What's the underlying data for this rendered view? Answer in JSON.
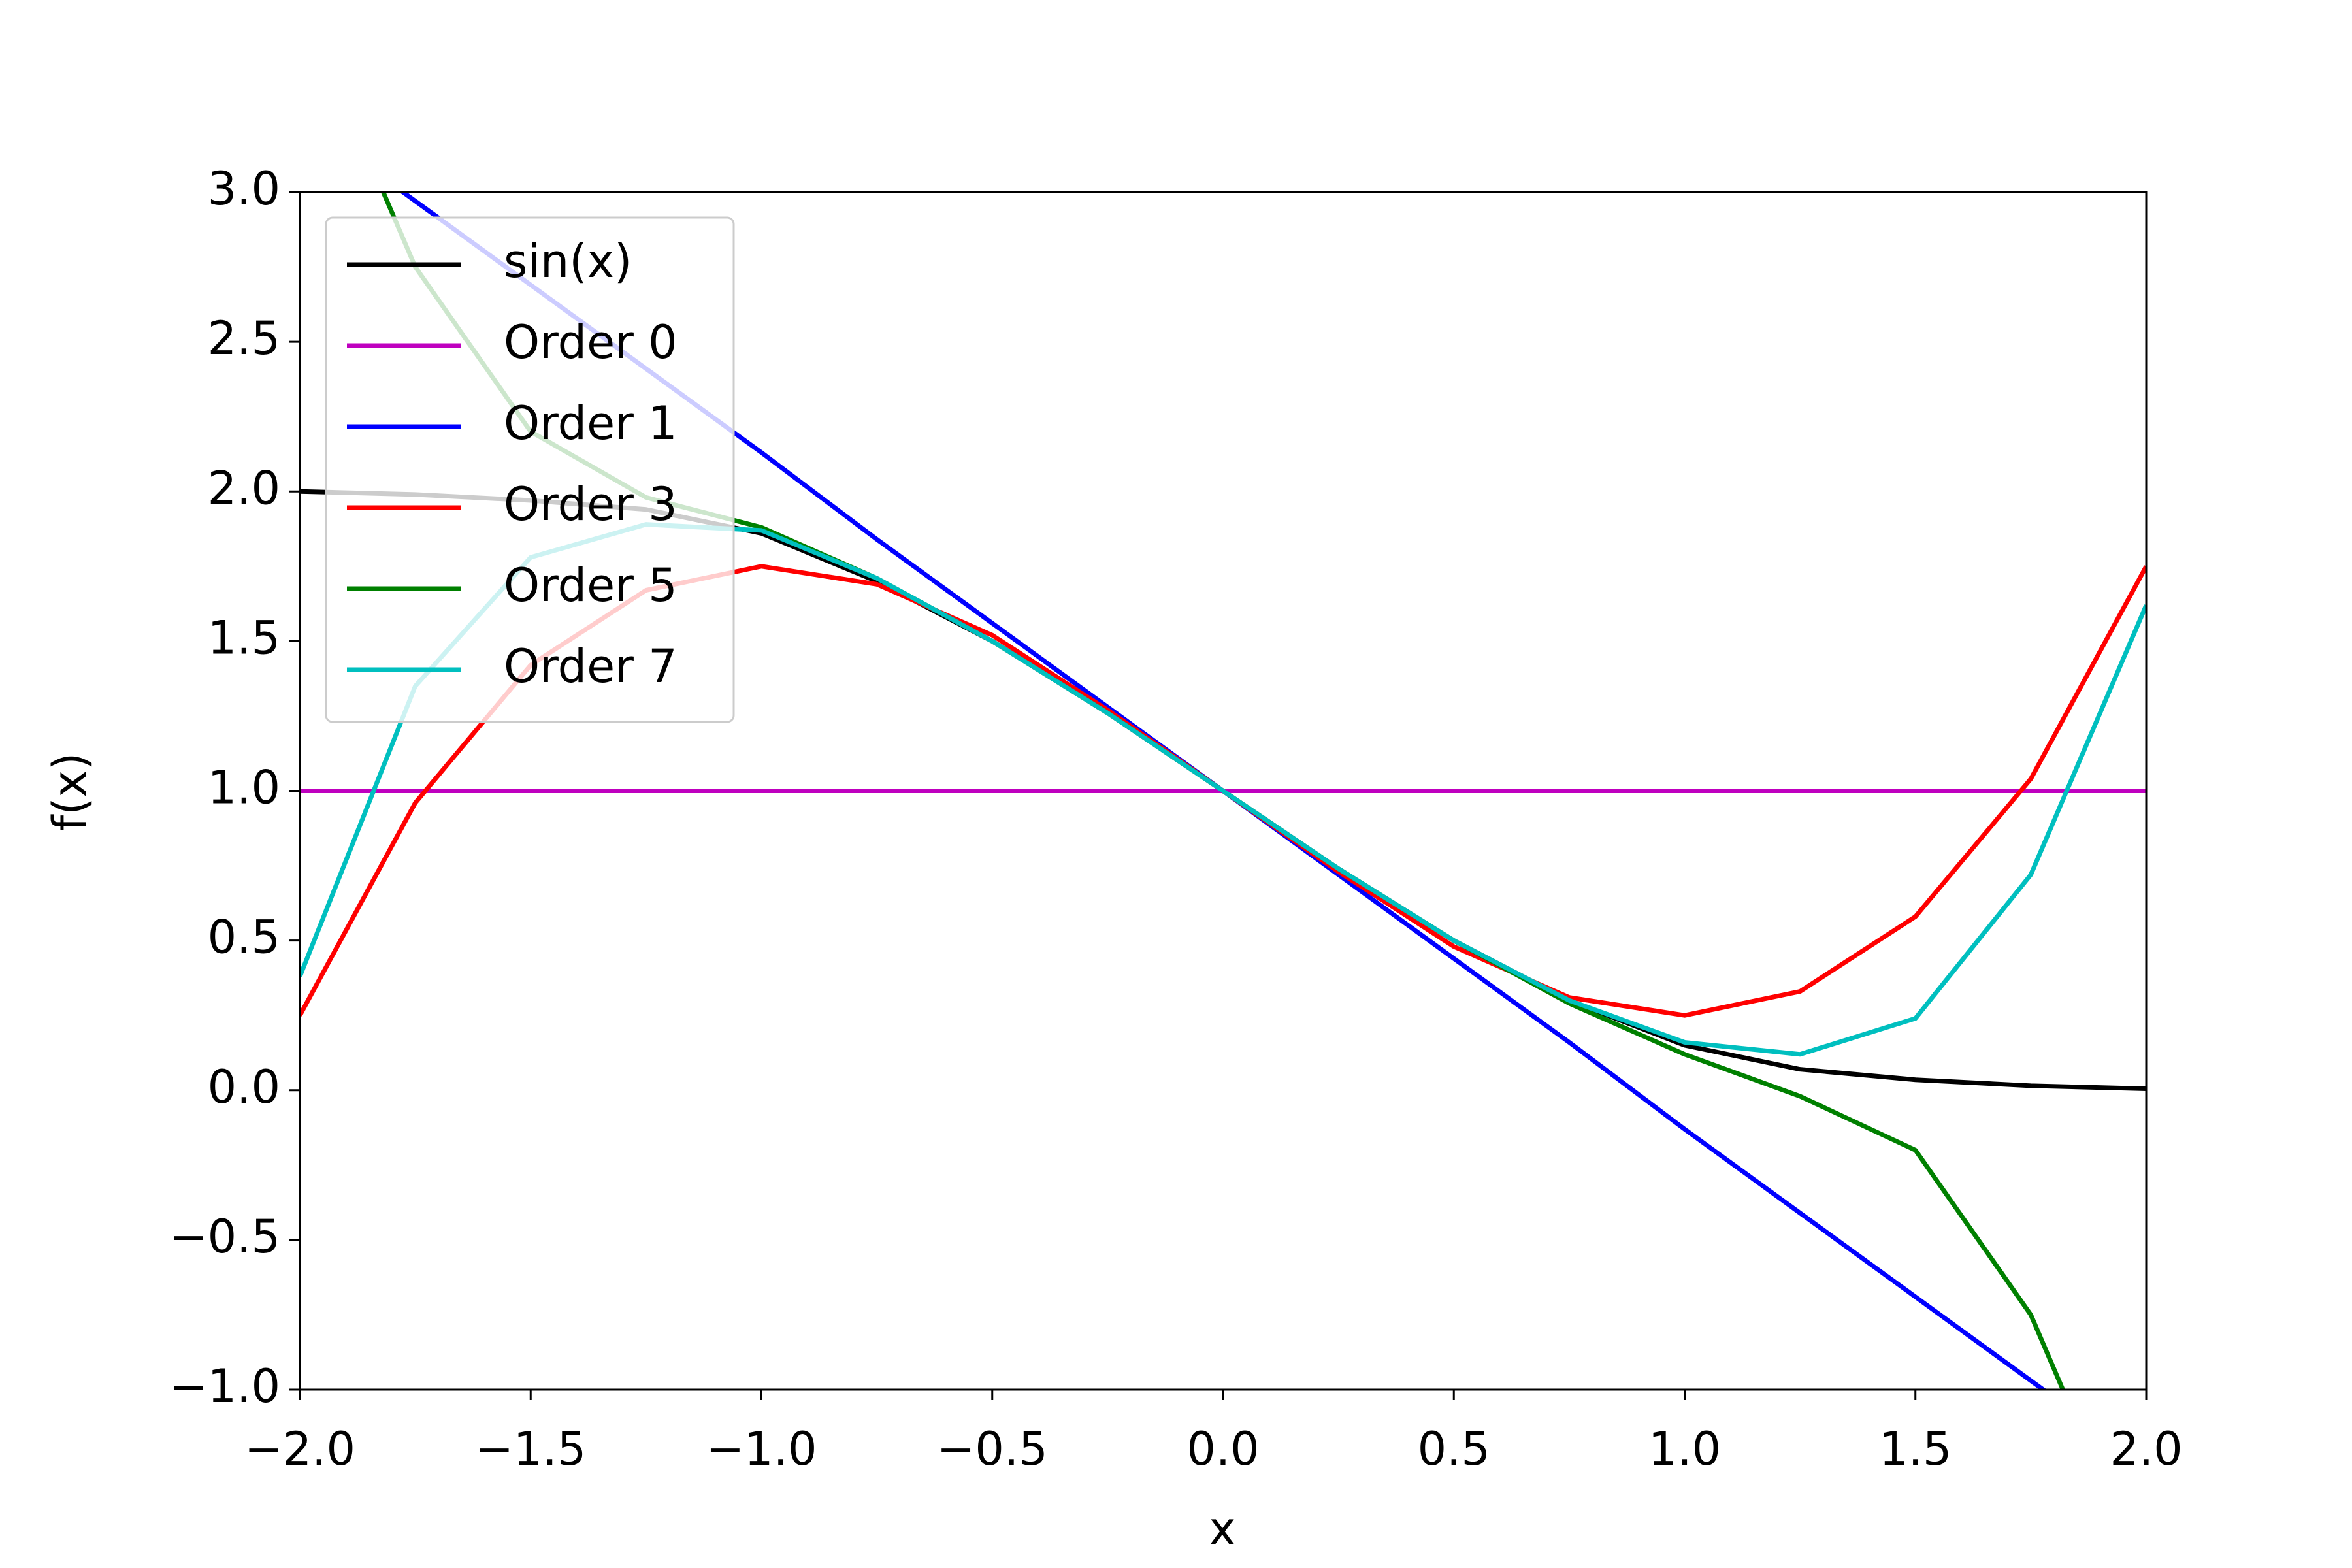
{
  "chart_data": {
    "type": "line",
    "xlabel": "x",
    "ylabel": "f(x)",
    "x": [
      -2,
      -1.75,
      -1.5,
      -1.25,
      -1,
      -0.75,
      -0.5,
      -0.25,
      0,
      0.25,
      0.5,
      0.75,
      1,
      1.25,
      1.5,
      1.75,
      2
    ],
    "series": [
      {
        "name": "sin(x)",
        "color": "#000000",
        "values": [
          2.0,
          1.99,
          1.97,
          1.94,
          1.86,
          1.7,
          1.5,
          1.26,
          1,
          0.74,
          0.5,
          0.3,
          0.15,
          0.07,
          0.035,
          0.015,
          0.005
        ]
      },
      {
        "name": "Order 0",
        "color": "#bf00bf",
        "values": [
          1,
          1,
          1,
          1,
          1,
          1,
          1,
          1,
          1,
          1,
          1,
          1,
          1,
          1,
          1,
          1,
          1
        ]
      },
      {
        "name": "Order 1",
        "color": "#0000ff",
        "values": [
          3.25,
          2.97,
          2.69,
          2.41,
          2.13,
          1.84,
          1.56,
          1.28,
          1,
          0.72,
          0.44,
          0.16,
          -0.13,
          -0.41,
          -0.69,
          -0.97,
          -1.25
        ]
      },
      {
        "name": "Order 3",
        "color": "#ff0000",
        "values": [
          0.25,
          0.96,
          1.42,
          1.67,
          1.75,
          1.69,
          1.52,
          1.27,
          1,
          0.73,
          0.48,
          0.31,
          0.25,
          0.33,
          0.58,
          1.04,
          1.75
        ]
      },
      {
        "name": "Order 5",
        "color": "#008000",
        "values": [
          3.65,
          2.75,
          2.2,
          1.98,
          1.88,
          1.71,
          1.5,
          1.26,
          1,
          0.74,
          0.5,
          0.29,
          0.12,
          -0.02,
          -0.2,
          -0.75,
          -1.65
        ]
      },
      {
        "name": "Order 7",
        "color": "#00bfbf",
        "values": [
          0.38,
          1.35,
          1.78,
          1.89,
          1.87,
          1.71,
          1.5,
          1.26,
          1,
          0.74,
          0.5,
          0.3,
          0.16,
          0.12,
          0.24,
          0.72,
          1.62
        ]
      }
    ],
    "xlim": [
      -2,
      2
    ],
    "ylim": [
      -1,
      3
    ],
    "xticks": [
      {
        "value": -2,
        "label": "−2.0"
      },
      {
        "value": -1.5,
        "label": "−1.5"
      },
      {
        "value": -1,
        "label": "−1.0"
      },
      {
        "value": -0.5,
        "label": "−0.5"
      },
      {
        "value": 0,
        "label": "0.0"
      },
      0.5,
      {
        "value": 1,
        "label": "1.0"
      },
      1.5,
      {
        "value": 2,
        "label": "2.0"
      }
    ],
    "yticks": [
      {
        "value": -1,
        "label": "−1.0"
      },
      {
        "value": -0.5,
        "label": "−0.5"
      },
      {
        "value": 0,
        "label": "0.0"
      },
      0.5,
      {
        "value": 1,
        "label": "1.0"
      },
      1.5,
      {
        "value": 2,
        "label": "2.0"
      },
      2.5,
      {
        "value": 3,
        "label": "3.0"
      }
    ],
    "grid": false,
    "legend": "upper left"
  }
}
